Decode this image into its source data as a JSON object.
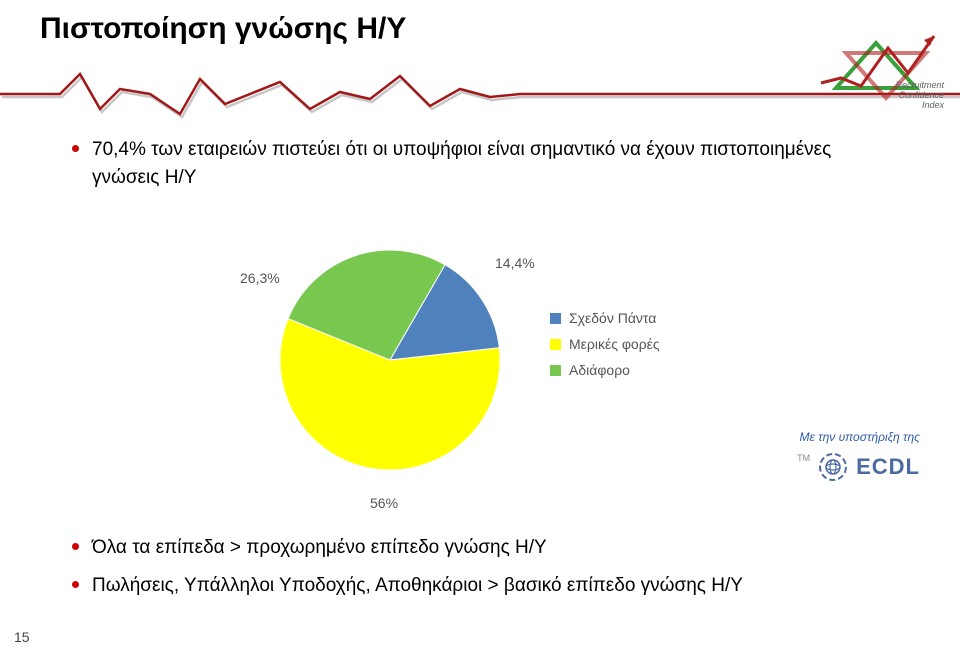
{
  "title": "Πιστοποίηση γνώσης Η/Υ",
  "bullets_top": [
    "70,4% των εταιρειών πιστεύει ότι οι υποψήφιοι είναι σημαντικό να έχουν πιστοποιημένες γνώσεις Η/Υ"
  ],
  "bullets_bottom": [
    "Όλα τα επίπεδα > προχωρημένο επίπεδο γνώσης Η/Υ",
    "Πωλήσεις, Υπάλληλοι Υποδοχής, Αποθηκάριοι > βασικό επίπεδο γνώσης Η/Υ"
  ],
  "support_text": "Με την υποστήριξη της",
  "ecdl_label": "ECDL",
  "page_number": "15",
  "pie": {
    "type": "pie",
    "background_color": "#ffffff",
    "label_fontsize": 14,
    "label_color": "#555555",
    "slices": [
      {
        "label": "Σχεδόν Πάντα",
        "value": 14.4,
        "data_label": "14,4%",
        "color": "#4f81bd"
      },
      {
        "label": "Μερικές φορές",
        "value": 56.0,
        "data_label": "56%",
        "color": "#ffff00"
      },
      {
        "label": "Αδιάφορο",
        "value": 26.3,
        "data_label": "26,3%",
        "color": "#78c850"
      }
    ],
    "start_angle_deg": -60,
    "radius": 110,
    "legend": {
      "position": "right",
      "swatch_size": 11,
      "fontsize": 14,
      "color": "#555555"
    }
  },
  "heartbeat_line": {
    "stroke": "#a01818",
    "stroke_width": 2.5,
    "shadow": "#444444"
  },
  "logo": {
    "triangle_up_color": "#3aa03a",
    "triangle_down_color": "#b02020",
    "line_color": "#b02020",
    "text_lines": [
      "Recruitment",
      "Confidence",
      "Index"
    ],
    "text_color": "#606060",
    "font_style": "italic"
  },
  "ecdl_icon": {
    "ring_color": "#4a6aa0",
    "globe_color": "#4a6aa0"
  }
}
